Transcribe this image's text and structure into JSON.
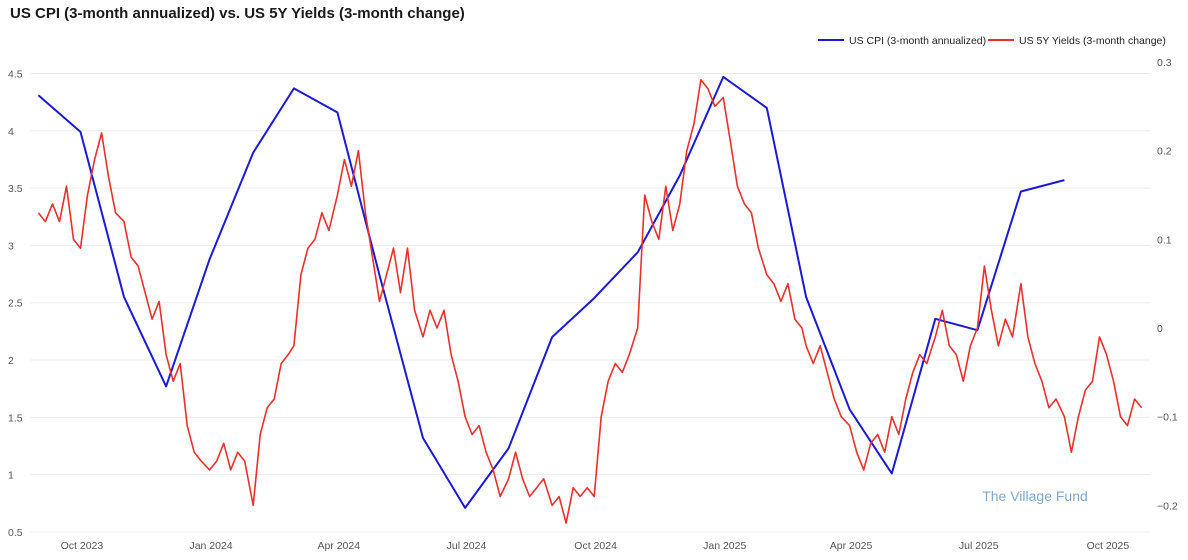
{
  "chart_data": {
    "type": "line",
    "title": "US CPI (3-month annualized) vs. US 5Y Yields (3-month change)",
    "watermark": "The Village Fund",
    "legend_position": "top-right",
    "grid": true,
    "x_range": [
      "2023-08-25",
      "2025-10-31"
    ],
    "x_ticks": [
      {
        "date": "2023-10-01",
        "label": "Oct 2023"
      },
      {
        "date": "2024-01-01",
        "label": "Jan 2024"
      },
      {
        "date": "2024-04-01",
        "label": "Apr 2024"
      },
      {
        "date": "2024-07-01",
        "label": "Jul 2024"
      },
      {
        "date": "2024-10-01",
        "label": "Oct 2024"
      },
      {
        "date": "2025-01-01",
        "label": "Jan 2025"
      },
      {
        "date": "2025-04-01",
        "label": "Apr 2025"
      },
      {
        "date": "2025-07-01",
        "label": "Jul 2025"
      },
      {
        "date": "2025-10-01",
        "label": "Oct 2025"
      }
    ],
    "y_left": {
      "range": [
        0.5,
        4.6
      ],
      "ticks": [
        "0.5",
        "1",
        "1.5",
        "2",
        "2.5",
        "3",
        "3.5",
        "4",
        "4.5"
      ]
    },
    "y_right": {
      "range": [
        -0.23,
        0.3
      ],
      "ticks": [
        "−0.2",
        "−0.1",
        "0",
        "0.1",
        "0.2",
        "0.3"
      ]
    },
    "colors": {
      "cpi": "#1a1ad6",
      "yields": "#e8302c",
      "grid": "#ececec"
    },
    "series": [
      {
        "name": "US CPI (3-month annualized)",
        "axis": "left",
        "points": [
          [
            "2023-08-31",
            4.31
          ],
          [
            "2023-09-30",
            3.99
          ],
          [
            "2023-10-31",
            2.55
          ],
          [
            "2023-11-30",
            1.77
          ],
          [
            "2023-12-31",
            2.88
          ],
          [
            "2024-01-31",
            3.81
          ],
          [
            "2024-02-29",
            4.37
          ],
          [
            "2024-03-31",
            4.16
          ],
          [
            "2024-04-30",
            2.74
          ],
          [
            "2024-05-31",
            1.32
          ],
          [
            "2024-06-30",
            0.71
          ],
          [
            "2024-07-31",
            1.23
          ],
          [
            "2024-08-31",
            2.2
          ],
          [
            "2024-09-30",
            2.54
          ],
          [
            "2024-10-31",
            2.94
          ],
          [
            "2024-11-30",
            3.61
          ],
          [
            "2024-12-31",
            4.47
          ],
          [
            "2025-01-31",
            4.2
          ],
          [
            "2025-02-28",
            2.55
          ],
          [
            "2025-03-31",
            1.57
          ],
          [
            "2025-04-30",
            1.01
          ],
          [
            "2025-05-31",
            2.36
          ],
          [
            "2025-06-30",
            2.26
          ],
          [
            "2025-07-31",
            3.47
          ],
          [
            "2025-08-31",
            3.57
          ]
        ]
      },
      {
        "name": "US 5Y Yields (3-month change)",
        "axis": "right",
        "points": [
          [
            "2023-08-31",
            0.13
          ],
          [
            "2023-09-05",
            0.12
          ],
          [
            "2023-09-10",
            0.14
          ],
          [
            "2023-09-15",
            0.12
          ],
          [
            "2023-09-20",
            0.16
          ],
          [
            "2023-09-25",
            0.1
          ],
          [
            "2023-09-30",
            0.09
          ],
          [
            "2023-10-05",
            0.15
          ],
          [
            "2023-10-10",
            0.19
          ],
          [
            "2023-10-15",
            0.22
          ],
          [
            "2023-10-20",
            0.17
          ],
          [
            "2023-10-25",
            0.13
          ],
          [
            "2023-10-31",
            0.12
          ],
          [
            "2023-11-05",
            0.08
          ],
          [
            "2023-11-10",
            0.07
          ],
          [
            "2023-11-15",
            0.04
          ],
          [
            "2023-11-20",
            0.01
          ],
          [
            "2023-11-25",
            0.03
          ],
          [
            "2023-11-30",
            -0.03
          ],
          [
            "2023-12-05",
            -0.06
          ],
          [
            "2023-12-10",
            -0.04
          ],
          [
            "2023-12-15",
            -0.11
          ],
          [
            "2023-12-20",
            -0.14
          ],
          [
            "2023-12-25",
            -0.15
          ],
          [
            "2023-12-31",
            -0.16
          ],
          [
            "2024-01-05",
            -0.15
          ],
          [
            "2024-01-10",
            -0.13
          ],
          [
            "2024-01-15",
            -0.16
          ],
          [
            "2024-01-20",
            -0.14
          ],
          [
            "2024-01-25",
            -0.15
          ],
          [
            "2024-01-31",
            -0.2
          ],
          [
            "2024-02-05",
            -0.12
          ],
          [
            "2024-02-10",
            -0.09
          ],
          [
            "2024-02-15",
            -0.08
          ],
          [
            "2024-02-20",
            -0.04
          ],
          [
            "2024-02-25",
            -0.03
          ],
          [
            "2024-02-29",
            -0.02
          ],
          [
            "2024-03-05",
            0.06
          ],
          [
            "2024-03-10",
            0.09
          ],
          [
            "2024-03-15",
            0.1
          ],
          [
            "2024-03-20",
            0.13
          ],
          [
            "2024-03-25",
            0.11
          ],
          [
            "2024-03-31",
            0.15
          ],
          [
            "2024-04-05",
            0.19
          ],
          [
            "2024-04-10",
            0.16
          ],
          [
            "2024-04-15",
            0.2
          ],
          [
            "2024-04-20",
            0.13
          ],
          [
            "2024-04-25",
            0.08
          ],
          [
            "2024-04-30",
            0.03
          ],
          [
            "2024-05-05",
            0.06
          ],
          [
            "2024-05-10",
            0.09
          ],
          [
            "2024-05-15",
            0.04
          ],
          [
            "2024-05-20",
            0.09
          ],
          [
            "2024-05-25",
            0.02
          ],
          [
            "2024-05-31",
            -0.01
          ],
          [
            "2024-06-05",
            0.02
          ],
          [
            "2024-06-10",
            0.0
          ],
          [
            "2024-06-15",
            0.02
          ],
          [
            "2024-06-20",
            -0.03
          ],
          [
            "2024-06-25",
            -0.06
          ],
          [
            "2024-06-30",
            -0.1
          ],
          [
            "2024-07-05",
            -0.12
          ],
          [
            "2024-07-10",
            -0.11
          ],
          [
            "2024-07-15",
            -0.14
          ],
          [
            "2024-07-20",
            -0.16
          ],
          [
            "2024-07-25",
            -0.19
          ],
          [
            "2024-07-31",
            -0.17
          ],
          [
            "2024-08-05",
            -0.14
          ],
          [
            "2024-08-10",
            -0.17
          ],
          [
            "2024-08-15",
            -0.19
          ],
          [
            "2024-08-20",
            -0.18
          ],
          [
            "2024-08-25",
            -0.17
          ],
          [
            "2024-08-31",
            -0.2
          ],
          [
            "2024-09-05",
            -0.19
          ],
          [
            "2024-09-10",
            -0.22
          ],
          [
            "2024-09-15",
            -0.18
          ],
          [
            "2024-09-20",
            -0.19
          ],
          [
            "2024-09-25",
            -0.18
          ],
          [
            "2024-09-30",
            -0.19
          ],
          [
            "2024-10-05",
            -0.1
          ],
          [
            "2024-10-10",
            -0.06
          ],
          [
            "2024-10-15",
            -0.04
          ],
          [
            "2024-10-20",
            -0.05
          ],
          [
            "2024-10-25",
            -0.03
          ],
          [
            "2024-10-31",
            0.0
          ],
          [
            "2024-11-05",
            0.15
          ],
          [
            "2024-11-10",
            0.12
          ],
          [
            "2024-11-15",
            0.1
          ],
          [
            "2024-11-20",
            0.16
          ],
          [
            "2024-11-25",
            0.11
          ],
          [
            "2024-11-30",
            0.14
          ],
          [
            "2024-12-05",
            0.2
          ],
          [
            "2024-12-10",
            0.23
          ],
          [
            "2024-12-15",
            0.28
          ],
          [
            "2024-12-20",
            0.27
          ],
          [
            "2024-12-25",
            0.25
          ],
          [
            "2024-12-31",
            0.26
          ],
          [
            "2025-01-05",
            0.21
          ],
          [
            "2025-01-10",
            0.16
          ],
          [
            "2025-01-15",
            0.14
          ],
          [
            "2025-01-20",
            0.13
          ],
          [
            "2025-01-25",
            0.09
          ],
          [
            "2025-01-31",
            0.06
          ],
          [
            "2025-02-05",
            0.05
          ],
          [
            "2025-02-10",
            0.03
          ],
          [
            "2025-02-15",
            0.05
          ],
          [
            "2025-02-20",
            0.01
          ],
          [
            "2025-02-25",
            0.0
          ],
          [
            "2025-02-28",
            -0.02
          ],
          [
            "2025-03-05",
            -0.04
          ],
          [
            "2025-03-10",
            -0.02
          ],
          [
            "2025-03-15",
            -0.05
          ],
          [
            "2025-03-20",
            -0.08
          ],
          [
            "2025-03-25",
            -0.1
          ],
          [
            "2025-03-31",
            -0.11
          ],
          [
            "2025-04-05",
            -0.14
          ],
          [
            "2025-04-10",
            -0.16
          ],
          [
            "2025-04-15",
            -0.13
          ],
          [
            "2025-04-20",
            -0.12
          ],
          [
            "2025-04-25",
            -0.14
          ],
          [
            "2025-04-30",
            -0.1
          ],
          [
            "2025-05-05",
            -0.12
          ],
          [
            "2025-05-10",
            -0.08
          ],
          [
            "2025-05-15",
            -0.05
          ],
          [
            "2025-05-20",
            -0.03
          ],
          [
            "2025-05-25",
            -0.04
          ],
          [
            "2025-05-31",
            -0.01
          ],
          [
            "2025-06-05",
            0.02
          ],
          [
            "2025-06-10",
            -0.02
          ],
          [
            "2025-06-15",
            -0.03
          ],
          [
            "2025-06-20",
            -0.06
          ],
          [
            "2025-06-25",
            -0.02
          ],
          [
            "2025-06-30",
            0.0
          ],
          [
            "2025-07-05",
            0.07
          ],
          [
            "2025-07-10",
            0.02
          ],
          [
            "2025-07-15",
            -0.02
          ],
          [
            "2025-07-20",
            0.01
          ],
          [
            "2025-07-25",
            -0.01
          ],
          [
            "2025-07-31",
            0.05
          ],
          [
            "2025-08-05",
            -0.01
          ],
          [
            "2025-08-10",
            -0.04
          ],
          [
            "2025-08-15",
            -0.06
          ],
          [
            "2025-08-20",
            -0.09
          ],
          [
            "2025-08-25",
            -0.08
          ],
          [
            "2025-08-31",
            -0.1
          ],
          [
            "2025-09-05",
            -0.14
          ],
          [
            "2025-09-10",
            -0.1
          ],
          [
            "2025-09-15",
            -0.07
          ],
          [
            "2025-09-20",
            -0.06
          ],
          [
            "2025-09-25",
            -0.01
          ],
          [
            "2025-09-30",
            -0.03
          ],
          [
            "2025-10-05",
            -0.06
          ],
          [
            "2025-10-10",
            -0.1
          ],
          [
            "2025-10-15",
            -0.11
          ],
          [
            "2025-10-20",
            -0.08
          ],
          [
            "2025-10-25",
            -0.09
          ]
        ]
      }
    ]
  }
}
